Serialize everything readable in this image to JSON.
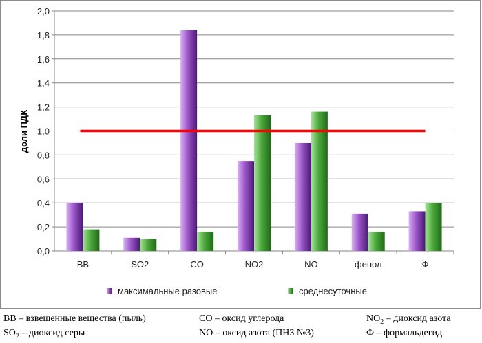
{
  "chart_data": {
    "type": "bar",
    "title": "",
    "xlabel": "",
    "ylabel": "доли ПДК",
    "ylim": [
      0,
      2.0
    ],
    "yticks": [
      "0,0",
      "0,2",
      "0,4",
      "0,6",
      "0,8",
      "1,0",
      "1,2",
      "1,4",
      "1,6",
      "1,8",
      "2,0"
    ],
    "categories": [
      "ВВ",
      "SO2",
      "CO",
      "NO2",
      "NO",
      "фенол",
      "Ф"
    ],
    "series": [
      {
        "name": "максимальные разовые",
        "color": "#7030a0",
        "values": [
          0.4,
          0.11,
          1.84,
          0.75,
          0.9,
          0.31,
          0.33
        ]
      },
      {
        "name": "среднесуточные",
        "color": "#2e8b2e",
        "values": [
          0.18,
          0.1,
          0.16,
          1.13,
          1.16,
          0.16,
          0.4
        ]
      }
    ],
    "reference_line": {
      "value": 1.0,
      "color": "#ff0000"
    },
    "grid": true,
    "legend": "bottom"
  },
  "footnotes": {
    "vv": "ВВ – взвешенные вещества (пыль)",
    "so2_main": "SO",
    "so2_sub": "2",
    "so2_rest": " – диоксид серы",
    "co": "CO – оксид углерода",
    "no": "NO – оксид азота (ПНЗ №3)",
    "no2_main": "NO",
    "no2_sub": "2",
    "no2_rest": " – диоксид азота",
    "f": "Ф – формальдегид"
  }
}
